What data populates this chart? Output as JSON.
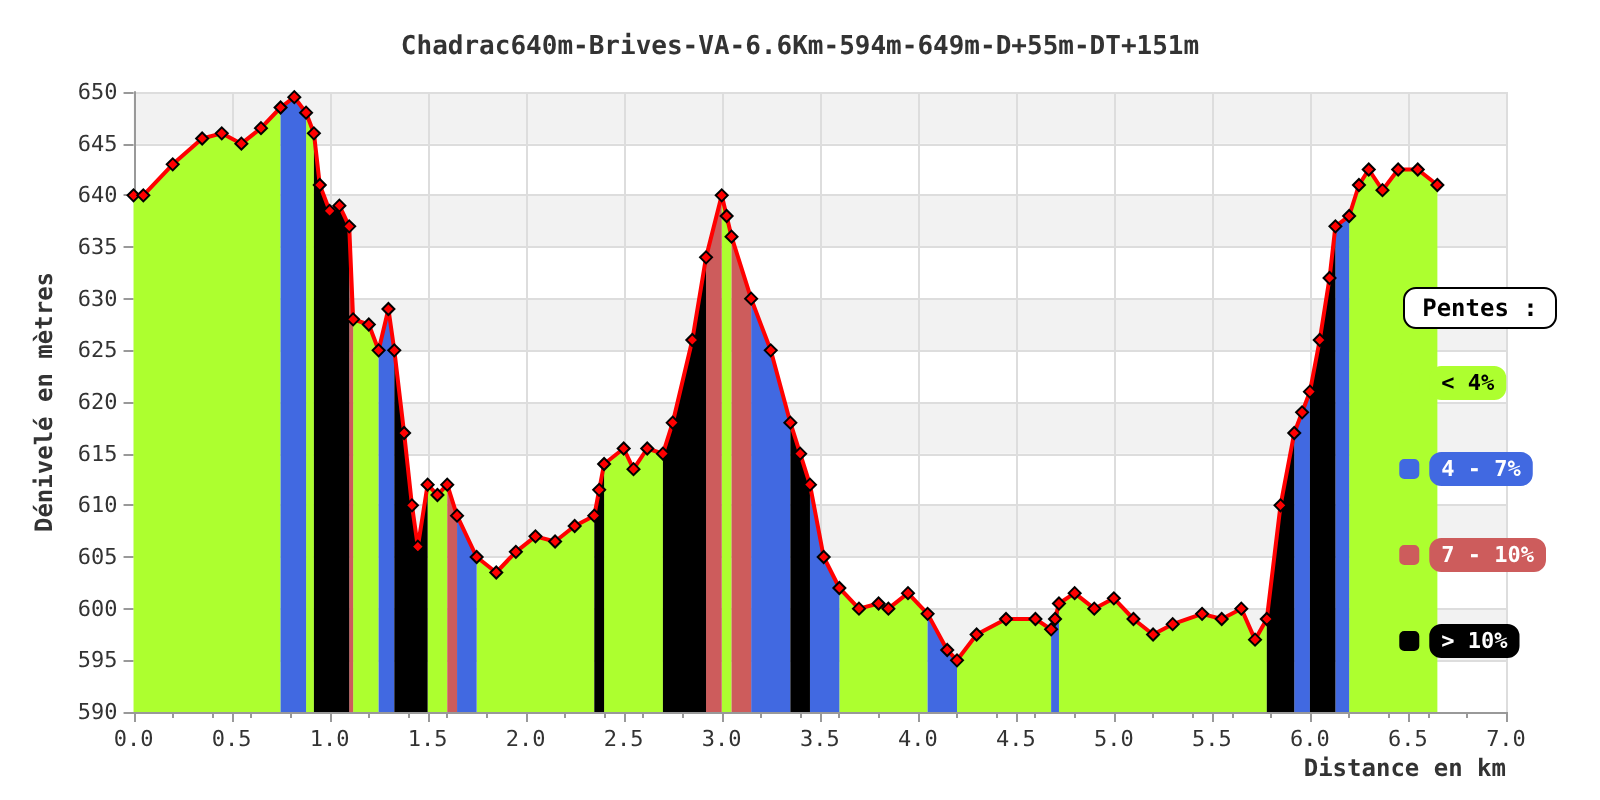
{
  "chart_data": {
    "type": "area",
    "title": "Chadrac640m-Brives-VA-6.6Km-594m-649m-D+55m-DT+151m",
    "xlabel": "Distance en km",
    "ylabel": "Dénivelé en mètres",
    "legend_title": "Pentes :",
    "legend": "right",
    "grid": true,
    "xlim": [
      0,
      7
    ],
    "xticks": [
      {
        "value": 0,
        "label": "0.0"
      },
      {
        "value": 0.5,
        "label": "0.5"
      },
      {
        "value": 1,
        "label": "1.0"
      },
      {
        "value": 1.5,
        "label": "1.5"
      },
      {
        "value": 2,
        "label": "2.0"
      },
      {
        "value": 2.5,
        "label": "2.5"
      },
      {
        "value": 3,
        "label": "3.0"
      },
      {
        "value": 3.5,
        "label": "3.5"
      },
      {
        "value": 4,
        "label": "4.0"
      },
      {
        "value": 4.5,
        "label": "4.5"
      },
      {
        "value": 5,
        "label": "5.0"
      },
      {
        "value": 5.5,
        "label": "5.5"
      },
      {
        "value": 6,
        "label": "6.0"
      },
      {
        "value": 6.5,
        "label": "6.5"
      },
      {
        "value": 7,
        "label": "7.0"
      }
    ],
    "ylim": [
      590,
      650
    ],
    "yticks": [
      590,
      595,
      600,
      605,
      610,
      615,
      620,
      625,
      630,
      635,
      640,
      645,
      650
    ],
    "x": [
      0,
      0.05,
      0.2,
      0.35,
      0.45,
      0.55,
      0.65,
      0.75,
      0.82,
      0.88,
      0.92,
      0.95,
      1,
      1.05,
      1.1,
      1.12,
      1.2,
      1.25,
      1.3,
      1.33,
      1.38,
      1.42,
      1.45,
      1.5,
      1.55,
      1.6,
      1.65,
      1.75,
      1.85,
      1.95,
      2.05,
      2.15,
      2.25,
      2.35,
      2.375,
      2.4,
      2.5,
      2.55,
      2.62,
      2.7,
      2.75,
      2.85,
      2.92,
      3,
      3.025,
      3.05,
      3.15,
      3.25,
      3.35,
      3.4,
      3.45,
      3.52,
      3.6,
      3.7,
      3.8,
      3.85,
      3.95,
      4.05,
      4.15,
      4.2,
      4.3,
      4.45,
      4.6,
      4.68,
      4.7,
      4.72,
      4.8,
      4.9,
      5,
      5.1,
      5.2,
      5.3,
      5.45,
      5.55,
      5.65,
      5.72,
      5.78,
      5.85,
      5.92,
      5.96,
      6,
      6.05,
      6.1,
      6.13,
      6.2,
      6.25,
      6.3,
      6.37,
      6.45,
      6.55,
      6.65
    ],
    "series": [
      {
        "name": "< 4%",
        "color": "#adff2f",
        "values": [
          640,
          640,
          643,
          645.5,
          646,
          645,
          646.5,
          648.5,
          null,
          648,
          646,
          null,
          null,
          null,
          null,
          628,
          627.5,
          625,
          null,
          null,
          null,
          null,
          null,
          612,
          611,
          612,
          null,
          605,
          603.5,
          605.5,
          607,
          606.5,
          608,
          609,
          null,
          614,
          615.5,
          613.5,
          615.5,
          615,
          null,
          null,
          null,
          640,
          638,
          636,
          null,
          null,
          null,
          null,
          null,
          null,
          602,
          600,
          600.5,
          600,
          601.5,
          599.5,
          null,
          595,
          597.5,
          599,
          599,
          598,
          null,
          600.5,
          601.5,
          600,
          601,
          599,
          597.5,
          598.5,
          599.5,
          599,
          600,
          597,
          599,
          null,
          null,
          null,
          null,
          null,
          null,
          null,
          638,
          641,
          642.5,
          640.5,
          642.5,
          642.5,
          641
        ]
      },
      {
        "name": "4 - 7%",
        "color": "#4169e1",
        "values": [
          null,
          null,
          null,
          null,
          null,
          null,
          null,
          648.5,
          649.5,
          648,
          null,
          null,
          null,
          null,
          null,
          null,
          null,
          625,
          629,
          625,
          null,
          null,
          null,
          null,
          null,
          null,
          609,
          605,
          null,
          null,
          null,
          null,
          null,
          null,
          null,
          null,
          null,
          null,
          null,
          null,
          null,
          null,
          null,
          null,
          null,
          null,
          630,
          625,
          618,
          null,
          612,
          605,
          602,
          null,
          null,
          null,
          null,
          599.5,
          596,
          595,
          null,
          null,
          null,
          598,
          599,
          600.5,
          null,
          null,
          null,
          null,
          null,
          null,
          null,
          null,
          null,
          null,
          null,
          null,
          617,
          619,
          621,
          null,
          null,
          637,
          638,
          null,
          null,
          null,
          null,
          null,
          null
        ]
      },
      {
        "name": "7 - 10%",
        "color": "#cd5c5c",
        "values": [
          null,
          null,
          null,
          null,
          null,
          null,
          null,
          null,
          null,
          null,
          null,
          null,
          null,
          null,
          637,
          628,
          null,
          null,
          null,
          null,
          null,
          null,
          null,
          null,
          null,
          612,
          609,
          null,
          null,
          null,
          null,
          null,
          null,
          null,
          null,
          null,
          null,
          null,
          null,
          null,
          null,
          null,
          634,
          640,
          null,
          636,
          630,
          null,
          null,
          null,
          null,
          null,
          null,
          null,
          null,
          null,
          null,
          null,
          null,
          null,
          null,
          null,
          null,
          null,
          null,
          null,
          null,
          null,
          null,
          null,
          null,
          null,
          null,
          null,
          null,
          null,
          null,
          null,
          null,
          null,
          null,
          null,
          null,
          null,
          null,
          null,
          null,
          null,
          null,
          null,
          null
        ]
      },
      {
        "name": "> 10%",
        "color": "#000000",
        "values": [
          null,
          null,
          null,
          null,
          null,
          null,
          null,
          null,
          null,
          null,
          646,
          641,
          638.5,
          639,
          637,
          null,
          null,
          null,
          null,
          625,
          617,
          610,
          606,
          612,
          null,
          null,
          null,
          null,
          null,
          null,
          null,
          null,
          null,
          609,
          611.5,
          614,
          null,
          null,
          null,
          615,
          618,
          626,
          634,
          null,
          null,
          null,
          null,
          null,
          618,
          615,
          612,
          null,
          null,
          null,
          null,
          null,
          null,
          null,
          null,
          null,
          null,
          null,
          null,
          null,
          null,
          null,
          null,
          null,
          null,
          null,
          null,
          null,
          null,
          null,
          null,
          null,
          599,
          610,
          617,
          null,
          621,
          626,
          632,
          637,
          null,
          null,
          null,
          null,
          null,
          null,
          null
        ]
      },
      {
        "type": "line",
        "color": "#ff0000",
        "marker": "diamond",
        "values": [
          640,
          640,
          643,
          645.5,
          646,
          645,
          646.5,
          648.5,
          649.5,
          648,
          646,
          641,
          638.5,
          639,
          637,
          628,
          627.5,
          625,
          629,
          625,
          617,
          610,
          606,
          612,
          611,
          612,
          609,
          605,
          603.5,
          605.5,
          607,
          606.5,
          608,
          609,
          611.5,
          614,
          615.5,
          613.5,
          615.5,
          615,
          618,
          626,
          634,
          640,
          638,
          636,
          630,
          625,
          618,
          615,
          612,
          605,
          602,
          600,
          600.5,
          600,
          601.5,
          599.5,
          596,
          595,
          597.5,
          599,
          599,
          598,
          599,
          600.5,
          601.5,
          600,
          601,
          599,
          597.5,
          598.5,
          599.5,
          599,
          600,
          597,
          599,
          610,
          617,
          619,
          621,
          626,
          632,
          637,
          638,
          641,
          642.5,
          640.5,
          642.5,
          642.5,
          641
        ]
      }
    ]
  }
}
